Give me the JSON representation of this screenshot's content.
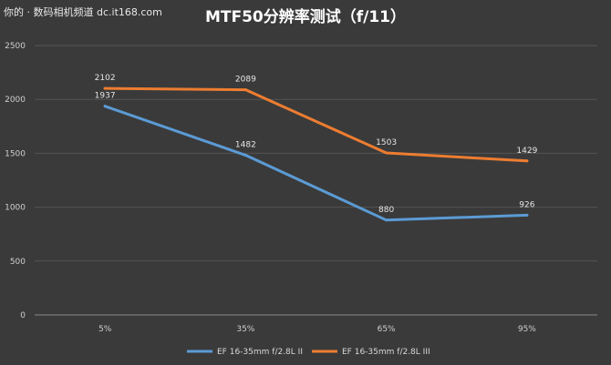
{
  "watermark": "你的 · 数码相机频道 dc.it168.com",
  "chart_data": {
    "type": "line",
    "title": "MTF50分辨率测试（f/11）",
    "categories": [
      "5%",
      "35%",
      "65%",
      "95%"
    ],
    "ylim": [
      0,
      2500
    ],
    "yticks": [
      0,
      500,
      1000,
      1500,
      2000,
      2500
    ],
    "grid": true,
    "legend_position": "bottom",
    "series": [
      {
        "name": "EF 16-35mm f/2.8L II",
        "color": "#5b9bd5",
        "values": [
          1937,
          1482,
          880,
          926
        ]
      },
      {
        "name": "EF 16-35mm f/2.8L III",
        "color": "#ed7d31",
        "values": [
          2102,
          2089,
          1503,
          1429
        ]
      }
    ]
  }
}
